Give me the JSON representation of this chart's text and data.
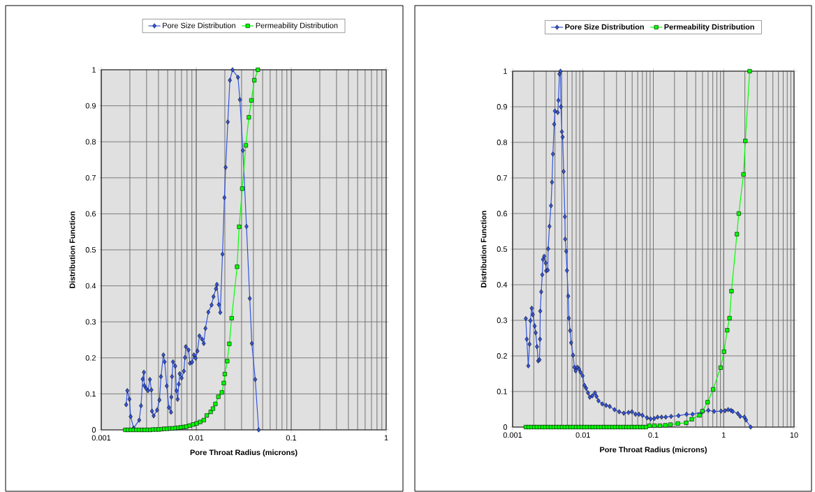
{
  "chart_data": [
    {
      "type": "line",
      "xlabel": "Pore Throat Radius (microns)",
      "ylabel": "Distribution Function",
      "log": "x",
      "grid": true,
      "legend": "top",
      "xlim": [
        0.001,
        1
      ],
      "ylim": [
        0,
        1
      ],
      "xticks": [
        0.001,
        0.01,
        0.1,
        1
      ],
      "yticks": [
        0,
        0.1,
        0.2,
        0.3,
        0.4,
        0.5,
        0.6,
        0.7,
        0.8,
        0.9,
        1
      ],
      "series": [
        {
          "name": "Pore Size Distribution",
          "color": "#3355dd",
          "marker": "diamond",
          "x": [
            0.00183,
            0.00188,
            0.00198,
            0.00204,
            0.00219,
            0.00251,
            0.00262,
            0.00273,
            0.00281,
            0.00284,
            0.00297,
            0.00311,
            0.00325,
            0.00337,
            0.00342,
            0.00356,
            0.00387,
            0.0041,
            0.00425,
            0.00451,
            0.00465,
            0.00489,
            0.00516,
            0.00543,
            0.00547,
            0.00556,
            0.00569,
            0.00601,
            0.00619,
            0.00637,
            0.00655,
            0.0067,
            0.00702,
            0.00741,
            0.00762,
            0.00776,
            0.0083,
            0.00859,
            0.00904,
            0.00946,
            0.00984,
            0.0103,
            0.0108,
            0.0115,
            0.012,
            0.0125,
            0.0134,
            0.0145,
            0.0152,
            0.0161,
            0.0165,
            0.0173,
            0.0179,
            0.0189,
            0.0198,
            0.0204,
            0.0215,
            0.0226,
            0.0241,
            0.0275,
            0.0288,
            0.031,
            0.0338,
            0.0366,
            0.0385,
            0.0418,
            0.0454
          ],
          "values": [
            0.07,
            0.109,
            0.085,
            0.037,
            0.005,
            0.027,
            0.067,
            0.141,
            0.16,
            0.123,
            0.115,
            0.109,
            0.14,
            0.111,
            0.052,
            0.039,
            0.055,
            0.083,
            0.148,
            0.208,
            0.189,
            0.122,
            0.062,
            0.049,
            0.091,
            0.148,
            0.189,
            0.177,
            0.109,
            0.085,
            0.127,
            0.156,
            0.144,
            0.163,
            0.201,
            0.231,
            0.222,
            0.185,
            0.188,
            0.208,
            0.199,
            0.219,
            0.261,
            0.252,
            0.24,
            0.282,
            0.327,
            0.347,
            0.37,
            0.392,
            0.404,
            0.348,
            0.326,
            0.488,
            0.645,
            0.729,
            0.855,
            0.971,
            1.0,
            0.979,
            0.917,
            0.776,
            0.565,
            0.365,
            0.24,
            0.14,
            0.0
          ]
        },
        {
          "name": "Permeability Distribution",
          "color": "#00ff00",
          "marker": "square",
          "x": [
            0.00179,
            0.00191,
            0.00205,
            0.00219,
            0.00234,
            0.00251,
            0.00269,
            0.00287,
            0.00308,
            0.00329,
            0.00352,
            0.00377,
            0.00403,
            0.00432,
            0.00461,
            0.00494,
            0.00528,
            0.00565,
            0.00605,
            0.00647,
            0.00693,
            0.00741,
            0.00785,
            0.00853,
            0.00929,
            0.0101,
            0.011,
            0.012,
            0.0129,
            0.0142,
            0.015,
            0.0159,
            0.0171,
            0.0186,
            0.0195,
            0.02,
            0.0212,
            0.0223,
            0.0236,
            0.0269,
            0.0283,
            0.0305,
            0.0333,
            0.0358,
            0.0381,
            0.0409,
            0.0446
          ],
          "values": [
            0,
            0,
            0,
            0,
            0,
            0,
            0,
            0,
            0,
            0,
            0.001,
            0.001,
            0.001,
            0.002,
            0.003,
            0.003,
            0.004,
            0.004,
            0.005,
            0.006,
            0.007,
            0.008,
            0.009,
            0.012,
            0.015,
            0.018,
            0.022,
            0.027,
            0.04,
            0.05,
            0.059,
            0.072,
            0.092,
            0.104,
            0.13,
            0.155,
            0.191,
            0.239,
            0.31,
            0.453,
            0.564,
            0.67,
            0.79,
            0.868,
            0.915,
            0.971,
            1.0
          ]
        }
      ]
    },
    {
      "type": "line",
      "xlabel": "Pore Throat Radius (microns)",
      "ylabel": "Distribution Function",
      "log": "x",
      "grid": true,
      "legend": "top",
      "xlim": [
        0.001,
        10
      ],
      "ylim": [
        0,
        1
      ],
      "xticks": [
        0.001,
        0.01,
        0.1,
        1,
        10
      ],
      "yticks": [
        0,
        0.1,
        0.2,
        0.3,
        0.4,
        0.5,
        0.6,
        0.7,
        0.8,
        0.9,
        1
      ],
      "series": [
        {
          "name": "Pore Size Distribution",
          "color": "#3355dd",
          "marker": "diamond",
          "x": [
            0.00154,
            0.00159,
            0.00167,
            0.00174,
            0.00179,
            0.00187,
            0.00194,
            0.00206,
            0.00213,
            0.00222,
            0.00231,
            0.00241,
            0.00245,
            0.00247,
            0.00255,
            0.00264,
            0.0027,
            0.00281,
            0.00295,
            0.003,
            0.00316,
            0.0032,
            0.00334,
            0.00351,
            0.00363,
            0.00374,
            0.0039,
            0.00399,
            0.00438,
            0.00448,
            0.00463,
            0.00479,
            0.00486,
            0.00501,
            0.00514,
            0.00531,
            0.00553,
            0.00559,
            0.00577,
            0.00592,
            0.00617,
            0.00631,
            0.00656,
            0.00679,
            0.00724,
            0.00755,
            0.00787,
            0.00834,
            0.00881,
            0.00925,
            0.00989,
            0.0105,
            0.0111,
            0.0118,
            0.0125,
            0.0136,
            0.0148,
            0.0156,
            0.0166,
            0.0188,
            0.0213,
            0.024,
            0.0281,
            0.0327,
            0.038,
            0.0444,
            0.0497,
            0.0557,
            0.0625,
            0.07,
            0.0817,
            0.0914,
            0.103,
            0.115,
            0.131,
            0.15,
            0.179,
            0.228,
            0.297,
            0.361,
            0.495,
            0.604,
            0.731,
            0.918,
            1.045,
            1.156,
            1.268,
            1.343,
            1.589,
            1.714,
            1.968,
            2.075,
            2.415
          ],
          "values": [
            0.305,
            0.247,
            0.172,
            0.233,
            0.299,
            0.334,
            0.316,
            0.284,
            0.265,
            0.226,
            0.186,
            0.189,
            0.247,
            0.326,
            0.38,
            0.428,
            0.471,
            0.48,
            0.461,
            0.439,
            0.441,
            0.501,
            0.564,
            0.622,
            0.688,
            0.767,
            0.851,
            0.888,
            0.884,
            0.918,
            0.992,
            1.0,
            0.9,
            0.83,
            0.815,
            0.718,
            0.591,
            0.528,
            0.494,
            0.44,
            0.368,
            0.306,
            0.271,
            0.237,
            0.202,
            0.168,
            0.158,
            0.168,
            0.163,
            0.154,
            0.144,
            0.117,
            0.109,
            0.096,
            0.084,
            0.088,
            0.096,
            0.086,
            0.074,
            0.065,
            0.061,
            0.058,
            0.049,
            0.043,
            0.039,
            0.041,
            0.043,
            0.036,
            0.036,
            0.033,
            0.026,
            0.023,
            0.024,
            0.028,
            0.028,
            0.028,
            0.03,
            0.032,
            0.036,
            0.036,
            0.043,
            0.047,
            0.044,
            0.045,
            0.046,
            0.049,
            0.047,
            0.044,
            0.038,
            0.03,
            0.028,
            0.02,
            0.0
          ]
        },
        {
          "name": "Permeability Distribution",
          "color": "#00ff00",
          "marker": "square",
          "x": [
            0.00154,
            0.00169,
            0.00185,
            0.00203,
            0.00222,
            0.00243,
            0.00267,
            0.00292,
            0.0032,
            0.00351,
            0.00384,
            0.00421,
            0.00461,
            0.00505,
            0.00554,
            0.00607,
            0.00665,
            0.00728,
            0.00798,
            0.00874,
            0.00958,
            0.0105,
            0.0115,
            0.0126,
            0.0138,
            0.0151,
            0.0166,
            0.0182,
            0.0199,
            0.0218,
            0.0239,
            0.0262,
            0.0287,
            0.0315,
            0.0345,
            0.0378,
            0.0414,
            0.0453,
            0.0497,
            0.0544,
            0.0596,
            0.0654,
            0.0716,
            0.0785,
            0.0879,
            0.104,
            0.124,
            0.148,
            0.175,
            0.223,
            0.293,
            0.352,
            0.453,
            0.499,
            0.59,
            0.708,
            0.904,
            1.01,
            1.12,
            1.21,
            1.29,
            1.54,
            1.64,
            1.91,
            2.03,
            2.34
          ],
          "values": [
            0,
            0,
            0,
            0,
            0,
            0,
            0,
            0,
            0,
            0,
            0,
            0,
            0,
            0,
            0,
            0,
            0,
            0,
            0,
            0,
            0,
            0,
            0,
            0,
            0,
            0,
            0,
            0,
            0,
            0,
            0,
            0,
            0,
            0,
            0,
            0,
            0,
            0,
            0,
            0,
            0,
            0,
            0,
            0,
            0.004,
            0.004,
            0.004,
            0.005,
            0.007,
            0.01,
            0.012,
            0.022,
            0.033,
            0.045,
            0.07,
            0.106,
            0.167,
            0.212,
            0.272,
            0.306,
            0.382,
            0.542,
            0.6,
            0.71,
            0.804,
            1.0
          ]
        }
      ]
    }
  ]
}
